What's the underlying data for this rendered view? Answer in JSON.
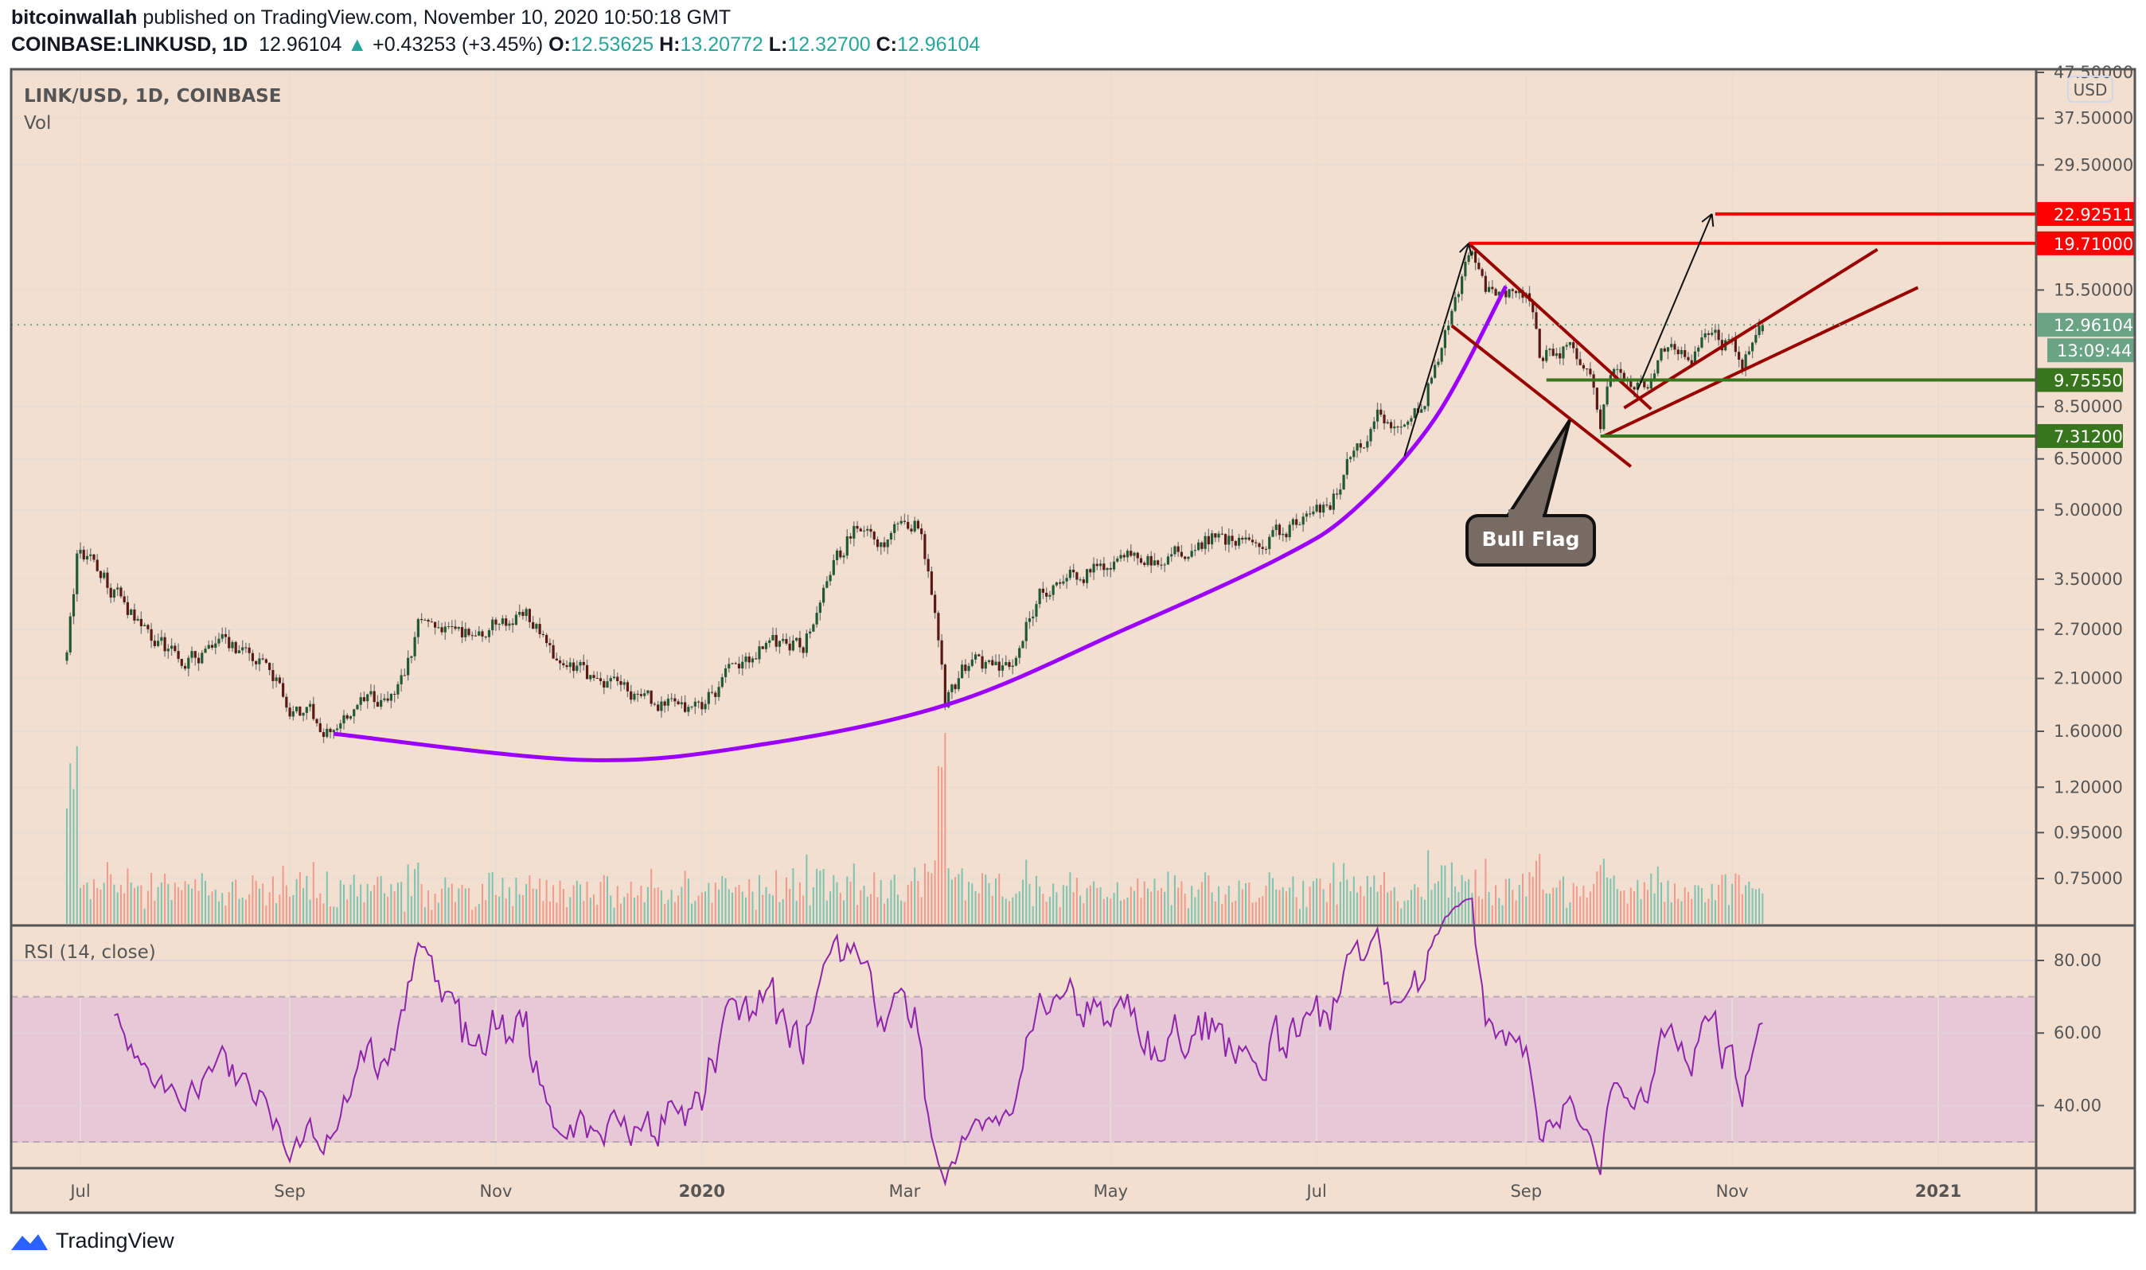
{
  "header": {
    "author": "bitcoinwallah",
    "published_text": "published on TradingView.com, November 10, 2020 10:50:18 GMT",
    "symbol": "COINBASE:LINKUSD, 1D",
    "last": "12.96104",
    "change": "+0.43253 (+3.45%)",
    "o_label": "O:",
    "o": "12.53625",
    "h_label": "H:",
    "h": "13.20772",
    "l_label": "L:",
    "l": "12.32700",
    "c_label": "C:",
    "c": "12.96104",
    "change_icon": "triangle-up-icon"
  },
  "legend": {
    "main": "LINK/USD, 1D, COINBASE",
    "vol": "Vol",
    "rsi": "RSI (14, close)"
  },
  "price_axis": {
    "currency": "USD",
    "ticks": [
      "47.50000",
      "37.50000",
      "29.50000",
      "15.50000",
      "8.50000",
      "6.50000",
      "5.00000",
      "3.50000",
      "2.70000",
      "2.10000",
      "1.60000",
      "1.20000",
      "0.95000",
      "0.75000"
    ],
    "tags": [
      {
        "text": "22.92511",
        "value": 22.92511,
        "color": "#ff0000"
      },
      {
        "text": "19.71000",
        "value": 19.71,
        "color": "#ff0000"
      },
      {
        "text": "12.96104",
        "value": 12.96104,
        "color": "#6aa484"
      },
      {
        "text": "9.75550",
        "value": 9.7555,
        "color": "#38761d"
      },
      {
        "text": "7.31200",
        "value": 7.312,
        "color": "#38761d"
      }
    ],
    "countdown": "13:09:44"
  },
  "rsi_axis": {
    "ticks": [
      "80.00",
      "60.00",
      "40.00"
    ],
    "band": [
      30,
      70
    ]
  },
  "time_axis": {
    "labels": [
      {
        "text": "Jul",
        "date": "2019-07-01",
        "bold": false
      },
      {
        "text": "Sep",
        "date": "2019-09-01",
        "bold": false
      },
      {
        "text": "Nov",
        "date": "2019-11-01",
        "bold": false
      },
      {
        "text": "2020",
        "date": "2020-01-01",
        "bold": true
      },
      {
        "text": "Mar",
        "date": "2020-03-01",
        "bold": false
      },
      {
        "text": "May",
        "date": "2020-05-01",
        "bold": false
      },
      {
        "text": "Jul",
        "date": "2020-07-01",
        "bold": false
      },
      {
        "text": "Sep",
        "date": "2020-09-01",
        "bold": false
      },
      {
        "text": "Nov",
        "date": "2020-11-01",
        "bold": false
      },
      {
        "text": "2021",
        "date": "2021-01-01",
        "bold": true
      }
    ]
  },
  "annotation": {
    "callout": "Bull Flag"
  },
  "footer": {
    "brand": "TradingView"
  },
  "colors": {
    "background": "#f2dfcf",
    "up_candle": "#1f5a35",
    "down_candle": "#5a1a14",
    "up_volume": "#7dc3b1",
    "down_volume": "#ef9a8c",
    "rsi_line": "#8e24aa",
    "rsi_band": "#e6c8d6",
    "arc": "#9b00ff",
    "flag": "#990000",
    "target": "#ff0000",
    "support": "#38761d"
  },
  "chart_data": {
    "type": "candlestick",
    "scale": "log",
    "ylim": [
      0.75,
      47.5
    ],
    "last_candle": {
      "date": "2020-11-10",
      "open": 12.53625,
      "high": 13.20772,
      "low": 12.327,
      "close": 12.96104
    },
    "close_path": [
      [
        "2019-06-27",
        2.3
      ],
      [
        "2019-06-30",
        3.9
      ],
      [
        "2019-07-05",
        3.8
      ],
      [
        "2019-07-15",
        3.0
      ],
      [
        "2019-07-22",
        2.6
      ],
      [
        "2019-08-01",
        2.3
      ],
      [
        "2019-08-10",
        2.5
      ],
      [
        "2019-08-20",
        2.45
      ],
      [
        "2019-09-01",
        1.85
      ],
      [
        "2019-09-14",
        1.6
      ],
      [
        "2019-09-22",
        1.8
      ],
      [
        "2019-10-03",
        1.95
      ],
      [
        "2019-10-10",
        2.9
      ],
      [
        "2019-10-20",
        2.6
      ],
      [
        "2019-11-01",
        2.75
      ],
      [
        "2019-11-10",
        2.95
      ],
      [
        "2019-11-20",
        2.2
      ],
      [
        "2019-12-01",
        2.1
      ],
      [
        "2019-12-15",
        1.85
      ],
      [
        "2019-12-31",
        1.8
      ],
      [
        "2020-01-10",
        2.2
      ],
      [
        "2020-01-20",
        2.5
      ],
      [
        "2020-01-31",
        2.5
      ],
      [
        "2020-02-10",
        3.8
      ],
      [
        "2020-02-15",
        4.6
      ],
      [
        "2020-02-25",
        4.3
      ],
      [
        "2020-03-04",
        4.7
      ],
      [
        "2020-03-08",
        3.7
      ],
      [
        "2020-03-12",
        2.2
      ],
      [
        "2020-03-13",
        1.85
      ],
      [
        "2020-03-20",
        2.3
      ],
      [
        "2020-04-01",
        2.2
      ],
      [
        "2020-04-10",
        3.3
      ],
      [
        "2020-04-20",
        3.6
      ],
      [
        "2020-05-01",
        3.8
      ],
      [
        "2020-05-15",
        3.9
      ],
      [
        "2020-06-01",
        4.4
      ],
      [
        "2020-06-15",
        4.1
      ],
      [
        "2020-06-25",
        4.7
      ],
      [
        "2020-07-05",
        5.0
      ],
      [
        "2020-07-10",
        6.5
      ],
      [
        "2020-07-20",
        8.3
      ],
      [
        "2020-07-28",
        7.5
      ],
      [
        "2020-08-01",
        8.5
      ],
      [
        "2020-08-08",
        12.5
      ],
      [
        "2020-08-12",
        15.0
      ],
      [
        "2020-08-16",
        19.5
      ],
      [
        "2020-08-20",
        15.0
      ],
      [
        "2020-08-28",
        15.5
      ],
      [
        "2020-09-01",
        15.5
      ],
      [
        "2020-09-05",
        11.0
      ],
      [
        "2020-09-15",
        11.5
      ],
      [
        "2020-09-21",
        9.5
      ],
      [
        "2020-09-23",
        7.8
      ],
      [
        "2020-09-26",
        10.5
      ],
      [
        "2020-10-01",
        10.0
      ],
      [
        "2020-10-06",
        9.3
      ],
      [
        "2020-10-12",
        11.5
      ],
      [
        "2020-10-20",
        11.0
      ],
      [
        "2020-10-25",
        12.5
      ],
      [
        "2020-11-01",
        11.5
      ],
      [
        "2020-11-04",
        10.8
      ],
      [
        "2020-11-07",
        12.3
      ],
      [
        "2020-11-10",
        12.96104
      ]
    ],
    "indicators": [
      "Vol",
      "RSI (14, close)"
    ],
    "drawings": {
      "arc": [
        [
          "2019-09-14",
          1.58
        ],
        [
          "2019-11-28",
          1.38
        ],
        [
          "2020-01-20",
          1.5
        ],
        [
          "2020-03-15",
          1.85
        ],
        [
          "2020-05-05",
          2.7
        ],
        [
          "2020-06-20",
          3.9
        ],
        [
          "2020-07-12",
          5.0
        ],
        [
          "2020-08-05",
          8.0
        ],
        [
          "2020-08-26",
          15.8
        ]
      ],
      "flag_upper": [
        [
          "2020-08-15",
          19.71
        ],
        [
          "2020-10-08",
          8.4
        ]
      ],
      "flag_lower": [
        [
          "2020-08-10",
          12.9
        ],
        [
          "2020-10-02",
          6.25
        ]
      ],
      "channel_upper": [
        [
          "2020-09-30",
          8.45
        ],
        [
          "2020-12-14",
          19.1
        ]
      ],
      "channel_lower": [
        [
          "2020-09-24",
          7.31
        ],
        [
          "2020-12-26",
          15.7
        ]
      ],
      "target_22": [
        [
          "2020-10-27",
          22.92511
        ]
      ],
      "resistance_19": [
        [
          "2020-08-15",
          19.71
        ]
      ],
      "support_9": [
        [
          "2020-09-07",
          9.7555
        ]
      ],
      "support_7": [
        [
          "2020-09-23",
          7.312
        ]
      ],
      "arrow_1": [
        [
          "2020-07-27",
          6.6
        ],
        [
          "2020-08-15",
          19.71
        ]
      ],
      "arrow_2": [
        [
          "2020-10-04",
          9.27
        ],
        [
          "2020-10-26",
          22.92511
        ]
      ]
    }
  }
}
